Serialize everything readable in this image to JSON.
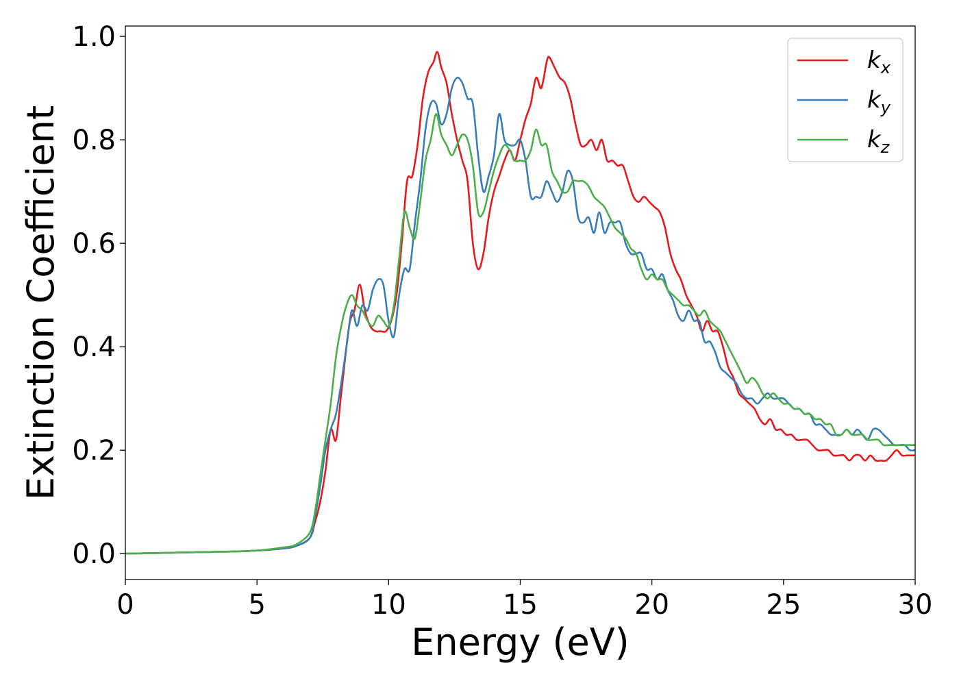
{
  "chart_data": {
    "type": "line",
    "title": "",
    "xlabel": "Energy (eV)",
    "ylabel": "Extinction Coefficient",
    "xlim": [
      0,
      30
    ],
    "ylim": [
      -0.05,
      1.02
    ],
    "xticks": [
      0,
      5,
      10,
      15,
      20,
      25,
      30
    ],
    "xtick_labels": [
      "0",
      "5",
      "10",
      "15",
      "20",
      "25",
      "30"
    ],
    "yticks": [
      0.0,
      0.2,
      0.4,
      0.6,
      0.8,
      1.0
    ],
    "ytick_labels": [
      "0.0",
      "0.2",
      "0.4",
      "0.6",
      "0.8",
      "1.0"
    ],
    "grid": false,
    "legend_position": "top-right",
    "series": [
      {
        "name": "k_x",
        "label_base": "k",
        "label_sub": "x",
        "color": "#e41a1c",
        "x": [
          0,
          2,
          4,
          5,
          6,
          6.5,
          7,
          7.2,
          7.4,
          7.6,
          7.8,
          8.0,
          8.2,
          8.5,
          8.7,
          8.9,
          9.1,
          9.3,
          9.5,
          9.7,
          9.9,
          10.1,
          10.3,
          10.5,
          10.7,
          10.9,
          11.1,
          11.3,
          11.5,
          11.7,
          11.85,
          12.0,
          12.2,
          12.4,
          12.6,
          12.8,
          13.0,
          13.2,
          13.4,
          13.6,
          13.8,
          14.0,
          14.2,
          14.4,
          14.6,
          14.8,
          15.0,
          15.2,
          15.4,
          15.6,
          15.8,
          16.0,
          16.1,
          16.3,
          16.5,
          16.7,
          16.9,
          17.1,
          17.3,
          17.5,
          17.7,
          17.9,
          18.1,
          18.3,
          18.5,
          18.7,
          18.9,
          19.1,
          19.3,
          19.5,
          19.7,
          19.9,
          20.1,
          20.3,
          20.5,
          20.7,
          20.9,
          21.1,
          21.3,
          21.5,
          21.7,
          21.9,
          22.1,
          22.3,
          22.5,
          22.7,
          22.9,
          23.1,
          23.3,
          23.5,
          23.7,
          23.9,
          24.1,
          24.3,
          24.5,
          24.7,
          24.9,
          25.1,
          25.3,
          25.5,
          25.7,
          25.9,
          26.1,
          26.3,
          26.5,
          26.7,
          26.9,
          27.1,
          27.3,
          27.5,
          27.7,
          27.9,
          28.1,
          28.3,
          28.5,
          28.7,
          28.9,
          29.1,
          29.3,
          29.5,
          29.7,
          30.0
        ],
        "y": [
          0.0,
          0.002,
          0.004,
          0.006,
          0.01,
          0.015,
          0.03,
          0.06,
          0.1,
          0.16,
          0.24,
          0.22,
          0.31,
          0.44,
          0.47,
          0.52,
          0.47,
          0.44,
          0.43,
          0.43,
          0.43,
          0.45,
          0.5,
          0.6,
          0.72,
          0.73,
          0.79,
          0.88,
          0.93,
          0.95,
          0.97,
          0.94,
          0.91,
          0.85,
          0.8,
          0.76,
          0.72,
          0.6,
          0.55,
          0.58,
          0.65,
          0.7,
          0.73,
          0.76,
          0.78,
          0.76,
          0.8,
          0.84,
          0.87,
          0.92,
          0.9,
          0.95,
          0.96,
          0.94,
          0.92,
          0.91,
          0.88,
          0.83,
          0.79,
          0.79,
          0.8,
          0.78,
          0.8,
          0.76,
          0.76,
          0.75,
          0.75,
          0.72,
          0.69,
          0.68,
          0.69,
          0.68,
          0.67,
          0.66,
          0.63,
          0.58,
          0.55,
          0.53,
          0.5,
          0.48,
          0.46,
          0.43,
          0.45,
          0.43,
          0.43,
          0.4,
          0.36,
          0.34,
          0.31,
          0.3,
          0.29,
          0.28,
          0.26,
          0.25,
          0.26,
          0.24,
          0.24,
          0.23,
          0.23,
          0.22,
          0.22,
          0.22,
          0.21,
          0.2,
          0.2,
          0.2,
          0.19,
          0.19,
          0.19,
          0.18,
          0.19,
          0.19,
          0.18,
          0.19,
          0.18,
          0.18,
          0.18,
          0.19,
          0.2,
          0.19,
          0.19,
          0.19
        ]
      },
      {
        "name": "k_y",
        "label_base": "k",
        "label_sub": "y",
        "color": "#377eb8",
        "x": [
          0,
          2,
          4,
          5,
          6,
          6.5,
          7,
          7.2,
          7.4,
          7.6,
          7.8,
          8.0,
          8.2,
          8.4,
          8.6,
          8.8,
          9.0,
          9.2,
          9.4,
          9.6,
          9.8,
          10.0,
          10.2,
          10.4,
          10.6,
          10.8,
          11.0,
          11.2,
          11.4,
          11.6,
          11.8,
          12.0,
          12.2,
          12.4,
          12.6,
          12.8,
          13.0,
          13.2,
          13.4,
          13.6,
          13.8,
          14.0,
          14.2,
          14.4,
          14.6,
          14.8,
          15.0,
          15.2,
          15.4,
          15.6,
          15.8,
          16.0,
          16.2,
          16.4,
          16.6,
          16.8,
          17.0,
          17.2,
          17.4,
          17.6,
          17.8,
          18.0,
          18.2,
          18.4,
          18.6,
          18.8,
          19.0,
          19.2,
          19.4,
          19.6,
          19.8,
          20.0,
          20.2,
          20.4,
          20.6,
          20.8,
          21.0,
          21.2,
          21.4,
          21.6,
          21.8,
          22.0,
          22.2,
          22.4,
          22.6,
          22.8,
          23.0,
          23.2,
          23.4,
          23.6,
          23.8,
          24.0,
          24.2,
          24.4,
          24.6,
          24.8,
          25.0,
          25.2,
          25.4,
          25.6,
          25.8,
          26.0,
          26.2,
          26.4,
          26.6,
          26.8,
          27.0,
          27.2,
          27.4,
          27.6,
          27.8,
          28.0,
          28.2,
          28.4,
          28.6,
          28.8,
          29.0,
          29.2,
          29.4,
          29.6,
          29.8,
          30.0
        ],
        "y": [
          0.0,
          0.002,
          0.004,
          0.006,
          0.01,
          0.015,
          0.03,
          0.07,
          0.13,
          0.2,
          0.24,
          0.27,
          0.33,
          0.4,
          0.47,
          0.44,
          0.48,
          0.47,
          0.51,
          0.53,
          0.52,
          0.45,
          0.42,
          0.5,
          0.55,
          0.55,
          0.64,
          0.72,
          0.82,
          0.87,
          0.87,
          0.83,
          0.85,
          0.9,
          0.92,
          0.91,
          0.88,
          0.87,
          0.77,
          0.7,
          0.73,
          0.77,
          0.85,
          0.8,
          0.79,
          0.79,
          0.8,
          0.76,
          0.69,
          0.69,
          0.69,
          0.72,
          0.7,
          0.68,
          0.7,
          0.74,
          0.72,
          0.65,
          0.64,
          0.65,
          0.62,
          0.66,
          0.62,
          0.64,
          0.64,
          0.64,
          0.6,
          0.58,
          0.58,
          0.58,
          0.55,
          0.55,
          0.53,
          0.54,
          0.51,
          0.49,
          0.46,
          0.45,
          0.47,
          0.45,
          0.45,
          0.41,
          0.41,
          0.39,
          0.36,
          0.35,
          0.34,
          0.33,
          0.31,
          0.3,
          0.3,
          0.29,
          0.3,
          0.31,
          0.3,
          0.3,
          0.3,
          0.29,
          0.28,
          0.28,
          0.27,
          0.27,
          0.25,
          0.25,
          0.24,
          0.23,
          0.23,
          0.23,
          0.24,
          0.23,
          0.24,
          0.23,
          0.22,
          0.24,
          0.24,
          0.23,
          0.22,
          0.21,
          0.21,
          0.21,
          0.2,
          0.2
        ]
      },
      {
        "name": "k_z",
        "label_base": "k",
        "label_sub": "z",
        "color": "#4daf4a",
        "x": [
          0,
          2,
          4,
          5,
          6,
          6.5,
          7,
          7.2,
          7.4,
          7.6,
          7.8,
          8.0,
          8.2,
          8.4,
          8.6,
          8.8,
          9.0,
          9.2,
          9.4,
          9.6,
          9.8,
          10.0,
          10.2,
          10.4,
          10.6,
          10.8,
          11.0,
          11.2,
          11.4,
          11.6,
          11.8,
          12.0,
          12.2,
          12.4,
          12.6,
          12.8,
          13.0,
          13.2,
          13.4,
          13.6,
          13.8,
          14.0,
          14.2,
          14.4,
          14.6,
          14.8,
          15.0,
          15.2,
          15.4,
          15.6,
          15.8,
          16.0,
          16.2,
          16.4,
          16.6,
          16.8,
          17.0,
          17.2,
          17.4,
          17.6,
          17.8,
          18.0,
          18.2,
          18.4,
          18.6,
          18.8,
          19.0,
          19.2,
          19.4,
          19.6,
          19.8,
          20.0,
          20.2,
          20.4,
          20.6,
          20.8,
          21.0,
          21.2,
          21.4,
          21.6,
          21.8,
          22.0,
          22.2,
          22.4,
          22.6,
          22.8,
          23.0,
          23.2,
          23.4,
          23.6,
          23.8,
          24.0,
          24.2,
          24.4,
          24.6,
          24.8,
          25.0,
          25.2,
          25.4,
          25.6,
          25.8,
          26.0,
          26.2,
          26.4,
          26.6,
          26.8,
          27.0,
          27.2,
          27.4,
          27.6,
          27.8,
          28.0,
          28.2,
          28.4,
          28.6,
          28.8,
          29.0,
          29.2,
          29.4,
          29.6,
          29.8,
          30.0
        ],
        "y": [
          0.0,
          0.002,
          0.004,
          0.006,
          0.012,
          0.018,
          0.04,
          0.08,
          0.15,
          0.22,
          0.29,
          0.38,
          0.44,
          0.48,
          0.5,
          0.48,
          0.47,
          0.45,
          0.44,
          0.46,
          0.45,
          0.44,
          0.48,
          0.57,
          0.66,
          0.63,
          0.61,
          0.68,
          0.76,
          0.8,
          0.85,
          0.81,
          0.79,
          0.77,
          0.79,
          0.81,
          0.8,
          0.75,
          0.66,
          0.66,
          0.7,
          0.74,
          0.77,
          0.79,
          0.78,
          0.76,
          0.76,
          0.76,
          0.78,
          0.82,
          0.79,
          0.79,
          0.74,
          0.72,
          0.7,
          0.7,
          0.72,
          0.72,
          0.72,
          0.71,
          0.69,
          0.68,
          0.67,
          0.65,
          0.63,
          0.62,
          0.61,
          0.59,
          0.58,
          0.55,
          0.53,
          0.54,
          0.53,
          0.53,
          0.51,
          0.5,
          0.49,
          0.48,
          0.48,
          0.47,
          0.46,
          0.47,
          0.45,
          0.44,
          0.43,
          0.41,
          0.39,
          0.37,
          0.35,
          0.33,
          0.34,
          0.33,
          0.31,
          0.3,
          0.31,
          0.3,
          0.29,
          0.29,
          0.28,
          0.28,
          0.27,
          0.27,
          0.26,
          0.26,
          0.25,
          0.25,
          0.23,
          0.23,
          0.24,
          0.23,
          0.23,
          0.23,
          0.22,
          0.22,
          0.22,
          0.21,
          0.21,
          0.21,
          0.21,
          0.21,
          0.21,
          0.21
        ]
      }
    ]
  }
}
